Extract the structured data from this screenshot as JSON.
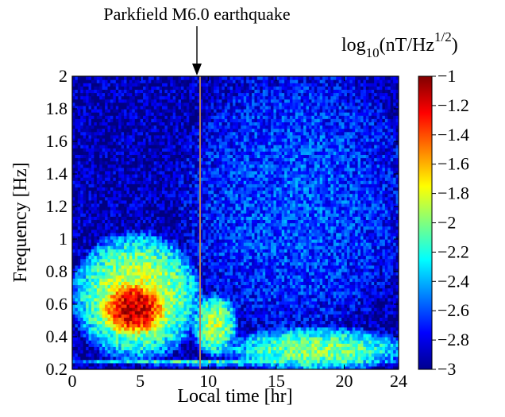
{
  "chart_data": {
    "type": "heatmap",
    "title": "",
    "xlabel": "Local time [hr]",
    "ylabel": "Frequency [Hz]",
    "xlim": [
      0,
      24
    ],
    "ylim": [
      0.2,
      2
    ],
    "x_ticks": [
      "0",
      "5",
      "10",
      "15",
      "20",
      "24"
    ],
    "y_ticks": [
      "0.2",
      "0.4",
      "0.6",
      "0.8",
      "1",
      "1.2",
      "1.4",
      "1.6",
      "1.8",
      "2"
    ],
    "colorbar": {
      "label_base": "log",
      "label_sub": "10",
      "label_unit": "(nT/Hz",
      "label_sup": "1/2",
      "label_close": ")",
      "range": [
        -3,
        -1
      ],
      "ticks": [
        "−1",
        "−1.2",
        "−1.4",
        "−1.6",
        "−1.8",
        "−2",
        "−2.2",
        "−2.4",
        "−2.6",
        "−2.8",
        "−3"
      ],
      "colormap": "jet"
    },
    "annotations": [
      {
        "text": "Parkfield M6.0 earthquake",
        "x": 9.4
      }
    ],
    "features": [
      {
        "hours": [
          2,
          7
        ],
        "freq_hz": [
          0.4,
          0.75
        ],
        "approx_log_value": -1.1
      },
      {
        "hours": [
          0.5,
          9
        ],
        "freq_hz": [
          0.3,
          1.0
        ],
        "approx_log_value": -1.8
      },
      {
        "hours": [
          9,
          12
        ],
        "freq_hz": [
          0.3,
          0.65
        ],
        "approx_log_value": -1.9
      },
      {
        "hours": [
          12,
          24
        ],
        "freq_hz": [
          0.2,
          0.45
        ],
        "approx_log_value": -2.0
      },
      {
        "hours": [
          0,
          24
        ],
        "freq_hz": [
          0.23,
          0.26
        ],
        "approx_log_value": -2.1
      },
      {
        "hours": [
          0,
          9
        ],
        "freq_hz": [
          1.0,
          2.0
        ],
        "approx_log_value": -2.9
      },
      {
        "hours": [
          9,
          24
        ],
        "freq_hz": [
          0.5,
          2.0
        ],
        "approx_log_value": -2.6
      }
    ]
  }
}
